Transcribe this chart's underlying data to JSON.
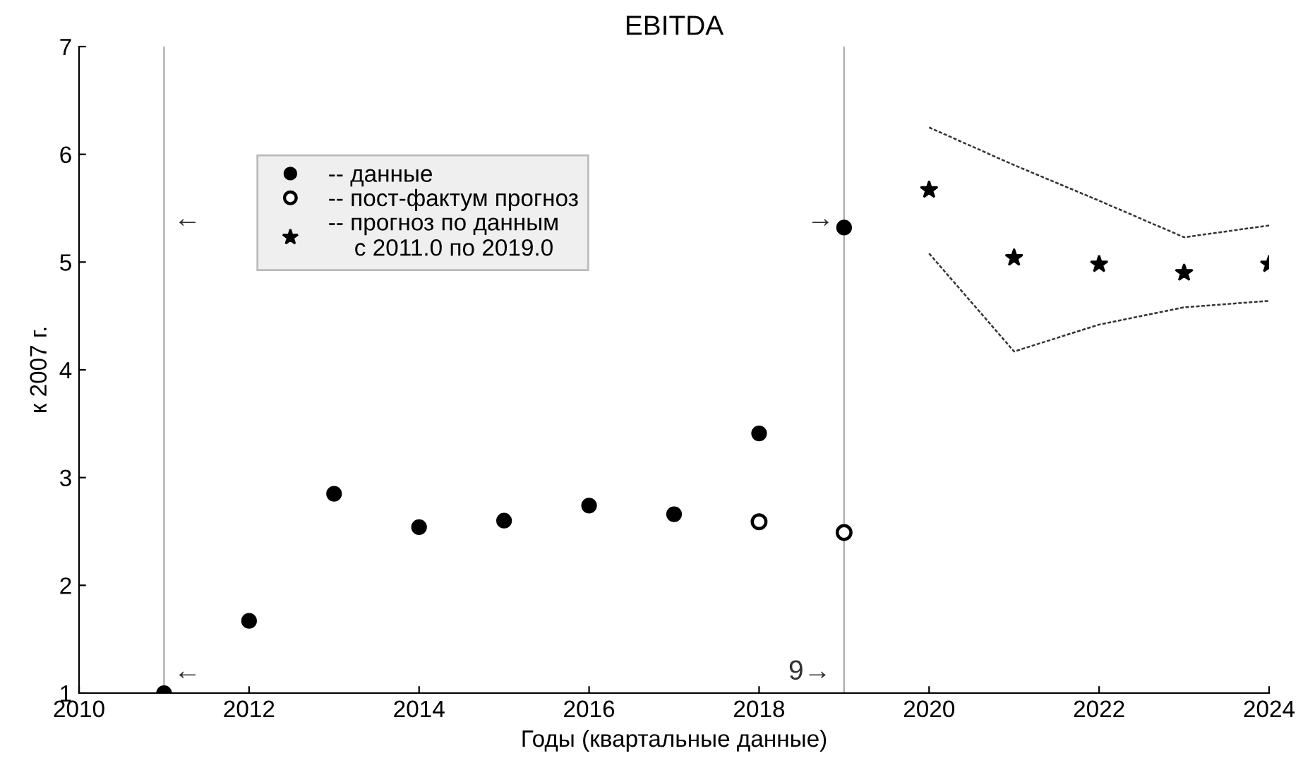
{
  "chart_data": {
    "type": "scatter",
    "title": "EBITDA",
    "xlabel": "Годы (квартальные данные)",
    "ylabel": "к 2007 г.",
    "xlim": [
      2010,
      2024
    ],
    "xticks": [
      2010,
      2012,
      2014,
      2016,
      2018,
      2020,
      2022,
      2024
    ],
    "ylim": [
      1,
      7
    ],
    "yticks": [
      1,
      2,
      3,
      4,
      5,
      6,
      7
    ],
    "grid": false,
    "legend": "top left",
    "series": [
      {
        "name": "-- данные",
        "color": "#000000",
        "marker": "circle",
        "x": [
          2011,
          2012,
          2013,
          2014,
          2015,
          2016,
          2017,
          2018,
          2019
        ],
        "values": [
          1.0,
          1.67,
          2.85,
          2.54,
          2.6,
          2.74,
          2.66,
          3.41,
          5.32
        ]
      },
      {
        "name": "-- пост-фактум прогноз",
        "color": "#000000",
        "marker": "open circle",
        "x": [
          2018,
          2019
        ],
        "values": [
          2.59,
          2.49
        ]
      },
      {
        "name": "-- прогноз по данным\n    с 2011.0 по 2019.0",
        "color": "#000000",
        "marker": "star",
        "x": [
          2020,
          2021,
          2022,
          2023,
          2024
        ],
        "values": [
          5.67,
          5.04,
          4.98,
          4.9,
          4.98
        ]
      },
      {
        "type": "line",
        "color": "#333333",
        "marker": "none",
        "line_style": "dotted",
        "x": [
          2020,
          2021,
          2022,
          2023,
          2024
        ],
        "values": [
          6.25,
          5.9,
          5.57,
          5.23,
          5.34
        ]
      },
      {
        "type": "line",
        "color": "#333333",
        "marker": "none",
        "line_style": "dotted",
        "x": [
          2020,
          2021,
          2022,
          2023,
          2024
        ],
        "values": [
          5.08,
          4.17,
          4.42,
          4.58,
          4.64
        ]
      }
    ],
    "ref_lines": [
      {
        "axis": "x",
        "value": 2011,
        "color": "#b0b0b0"
      },
      {
        "axis": "x",
        "value": 2019,
        "color": "#b0b0b0"
      }
    ],
    "annotations": [
      "←",
      "←",
      "→",
      "9→"
    ]
  }
}
